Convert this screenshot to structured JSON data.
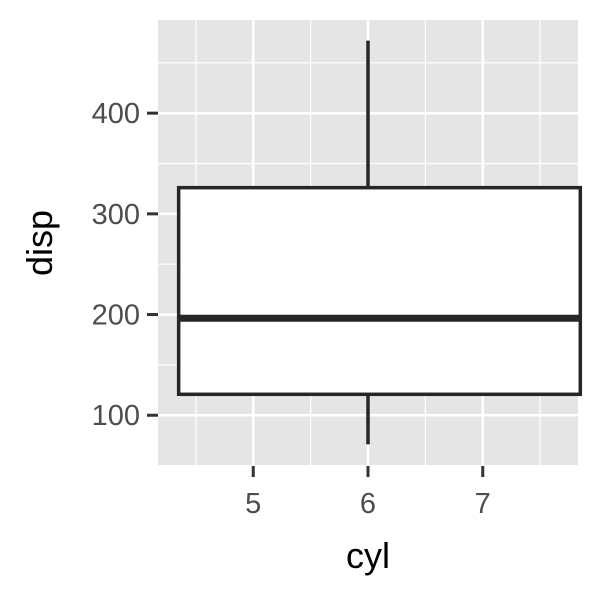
{
  "chart_data": {
    "type": "boxplot",
    "title": "",
    "xlabel": "cyl",
    "ylabel": "disp",
    "xlim": [
      4.17,
      7.83
    ],
    "ylim": [
      49.6,
      492.5
    ],
    "x_ticks": [
      5,
      6,
      7
    ],
    "y_ticks": [
      100,
      200,
      300,
      400
    ],
    "grid": true,
    "legend": "none",
    "colors": {
      "panel": "#e5e5e5",
      "grid": "#ffffff",
      "box_fill": "#ffffff",
      "box_stroke": "#262626",
      "tick_text": "#4d4d4d",
      "axis_title": "#000000"
    },
    "box": {
      "x": 6,
      "x_extent": [
        4.35,
        7.85
      ],
      "whisker_low": 71.1,
      "q1": 120.8,
      "median": 196.3,
      "q3": 326,
      "whisker_high": 472
    }
  }
}
